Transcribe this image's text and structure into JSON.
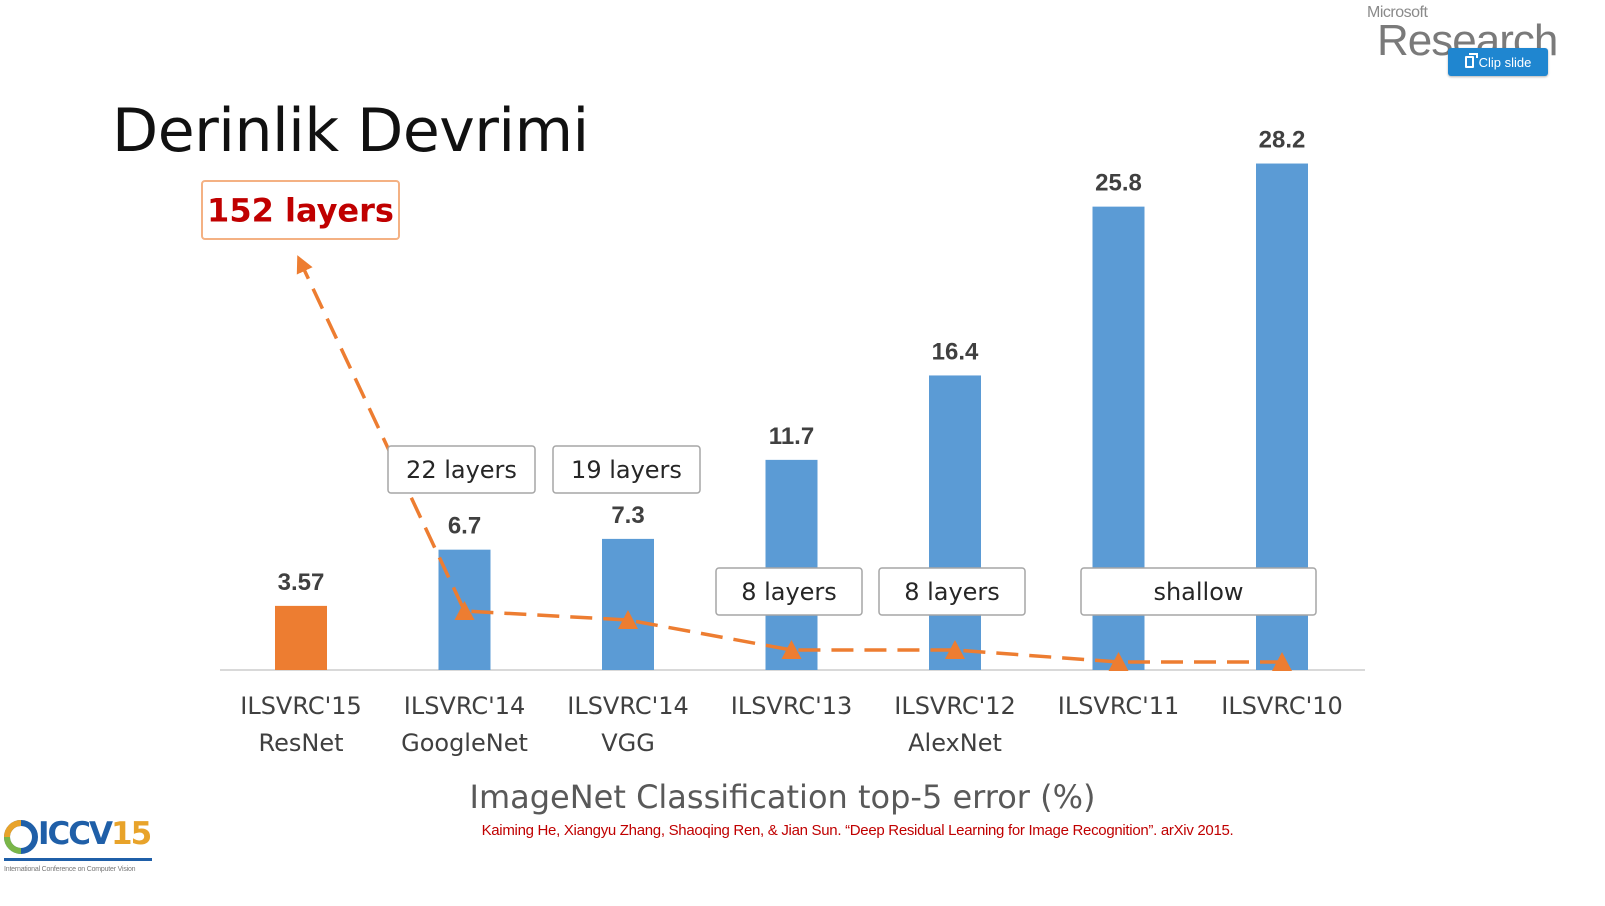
{
  "slide": {
    "title": "Derinlik Devrimi",
    "citation": "Kaiming He, Xiangyu Zhang, Shaoqing Ren, & Jian Sun. “Deep Residual Learning for Image Recognition”. arXiv 2015."
  },
  "header": {
    "logo_small": "Microsoft",
    "logo_big": "Research",
    "clip_button_label": "Clip slide"
  },
  "footer": {
    "logo_text_a": "ICCV",
    "logo_text_b": "15",
    "logo_subtitle": "International Conference on Computer Vision"
  },
  "chart_data": {
    "type": "bar",
    "title": "",
    "xlabel": "ImageNet Classification top-5 error (%)",
    "ylabel": "",
    "ylim": [
      0,
      30
    ],
    "grid": false,
    "categories": [
      [
        "ILSVRC'15",
        "ResNet"
      ],
      [
        "ILSVRC'14",
        "GoogleNet"
      ],
      [
        "ILSVRC'14",
        "VGG"
      ],
      [
        "ILSVRC'13",
        ""
      ],
      [
        "ILSVRC'12",
        "AlexNet"
      ],
      [
        "ILSVRC'11",
        ""
      ],
      [
        "ILSVRC'10",
        ""
      ]
    ],
    "values": [
      3.57,
      6.7,
      7.3,
      11.7,
      16.4,
      25.8,
      28.2
    ],
    "value_labels": [
      "3.57",
      "6.7",
      "7.3",
      "11.7",
      "16.4",
      "25.8",
      "28.2"
    ],
    "colors": [
      "#ed7d31",
      "#5b9bd5",
      "#5b9bd5",
      "#5b9bd5",
      "#5b9bd5",
      "#5b9bd5",
      "#5b9bd5"
    ],
    "depth_labels": [
      {
        "text": "152 layers",
        "index": 0,
        "highlight": true
      },
      {
        "text": "22 layers",
        "index": 1
      },
      {
        "text": "19 layers",
        "index": 2
      },
      {
        "text": "8 layers",
        "index": 3
      },
      {
        "text": "8 layers",
        "index": 4
      },
      {
        "text": "shallow",
        "index": [
          5,
          6
        ]
      }
    ],
    "depth_trend": {
      "color": "#ed7d31",
      "style": "dashed",
      "layers": [
        152,
        22,
        19,
        8,
        8,
        0,
        0
      ]
    }
  }
}
